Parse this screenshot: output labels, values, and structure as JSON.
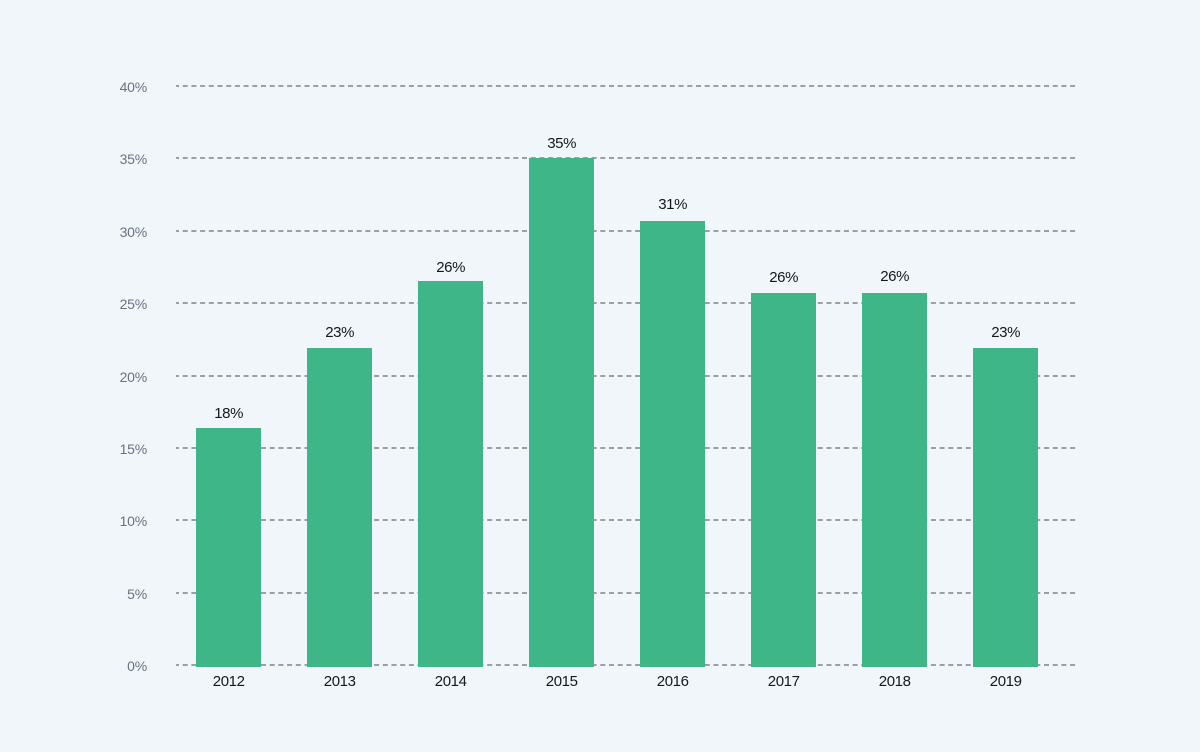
{
  "page": {
    "background_color": "#f0f6fa"
  },
  "chart_data": {
    "type": "bar",
    "title": "",
    "categories": [
      "2012",
      "2013",
      "2014",
      "2015",
      "2016",
      "2017",
      "2018",
      "2019"
    ],
    "values": [
      18,
      23,
      26,
      35,
      31,
      26,
      26,
      23
    ],
    "value_labels": [
      "18%",
      "23%",
      "26%",
      "35%",
      "31%",
      "26%",
      "26%",
      "23%"
    ],
    "bar_rendered_heights_pct": [
      16.4,
      21.9,
      26.5,
      35.0,
      30.65,
      25.7,
      25.7,
      21.9
    ],
    "xlabel": "",
    "ylabel": "",
    "y_axis": {
      "tick_labels": [
        "0%",
        "5%",
        "10%",
        "15%",
        "20%",
        "25%",
        "30%",
        "35%",
        "40%"
      ],
      "min": 0,
      "max": 40,
      "step": 5,
      "unit": "%"
    },
    "ylim": [
      0,
      40
    ],
    "grid": {
      "horizontal": true,
      "vertical": false,
      "style": "dashed"
    },
    "legend": {
      "visible": false
    },
    "colors": {
      "bar": "#3eb688",
      "gridline": "#98a0a9",
      "y_tick_label": "#6a7280",
      "x_tick_label": "#15181d",
      "value_label": "#14181c",
      "background": "#f0f6fa"
    }
  }
}
